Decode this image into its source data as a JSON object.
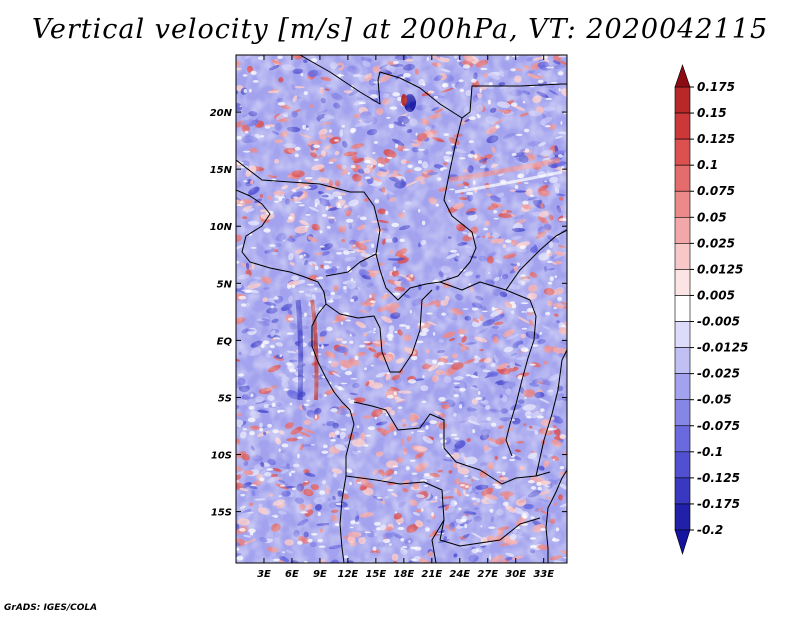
{
  "chart_data": {
    "type": "heatmap",
    "title": "Vertical velocity [m/s] at 200hPa, VT: 2020042115",
    "xlabel": "",
    "ylabel": "",
    "xlim": [
      0,
      35.5
    ],
    "ylim": [
      -19.5,
      25
    ],
    "x_ticks": [
      {
        "value": 3,
        "label": "3E"
      },
      {
        "value": 6,
        "label": "6E"
      },
      {
        "value": 9,
        "label": "9E"
      },
      {
        "value": 12,
        "label": "12E"
      },
      {
        "value": 15,
        "label": "15E"
      },
      {
        "value": 18,
        "label": "18E"
      },
      {
        "value": 21,
        "label": "21E"
      },
      {
        "value": 24,
        "label": "24E"
      },
      {
        "value": 27,
        "label": "27E"
      },
      {
        "value": 30,
        "label": "30E"
      },
      {
        "value": 33,
        "label": "33E"
      }
    ],
    "y_ticks": [
      {
        "value": 20,
        "label": "20N"
      },
      {
        "value": 15,
        "label": "15N"
      },
      {
        "value": 10,
        "label": "10N"
      },
      {
        "value": 5,
        "label": "5N"
      },
      {
        "value": 0,
        "label": "EQ"
      },
      {
        "value": -5,
        "label": "5S"
      },
      {
        "value": -10,
        "label": "10S"
      },
      {
        "value": -15,
        "label": "15S"
      }
    ],
    "colorbar": {
      "levels": [
        {
          "label": "0.175",
          "color": "#a01820"
        },
        {
          "label": "0.15",
          "color": "#b82828"
        },
        {
          "label": "0.125",
          "color": "#cc3838"
        },
        {
          "label": "0.1",
          "color": "#dc5050"
        },
        {
          "label": "0.075",
          "color": "#e46c6c"
        },
        {
          "label": "0.05",
          "color": "#ec8a8a"
        },
        {
          "label": "0.025",
          "color": "#f2a8a8"
        },
        {
          "label": "0.0125",
          "color": "#f8c8c8"
        },
        {
          "label": "0.005",
          "color": "#fce4e4"
        },
        {
          "label": "-0.005",
          "color": "#ffffff"
        },
        {
          "label": "-0.0125",
          "color": "#dcdcfa"
        },
        {
          "label": "-0.025",
          "color": "#c0c0f4"
        },
        {
          "label": "-0.05",
          "color": "#a2a2ee"
        },
        {
          "label": "-0.075",
          "color": "#8686e6"
        },
        {
          "label": "-0.1",
          "color": "#6a6ade"
        },
        {
          "label": "-0.125",
          "color": "#5050d0"
        },
        {
          "label": "-0.175",
          "color": "#3838c0"
        },
        {
          "label": "-0.2",
          "color": "#2020a8"
        }
      ],
      "top_triangle_color": "#8c0c14",
      "bottom_triangle_color": "#1414a0"
    },
    "background_color": "#a2a2ee"
  },
  "footer": "GrADS: IGES/COLA"
}
